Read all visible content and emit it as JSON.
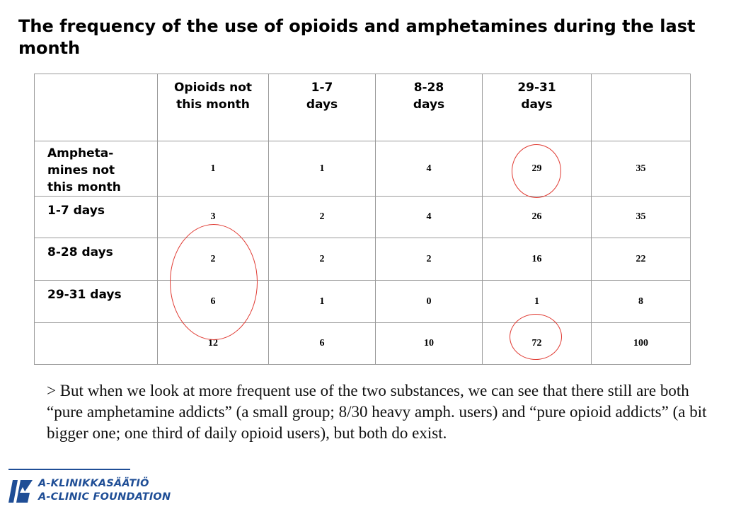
{
  "title": "The frequency of the use of opioids and amphetamines during the last month",
  "table": {
    "column_headers": [
      "",
      "Opioids not this month",
      "1-7 days",
      "8-28 days",
      "29-31 days",
      ""
    ],
    "rows": [
      {
        "label": "Ampheta-mines not this month",
        "values": [
          "1",
          "1",
          "4",
          "29",
          "35"
        ]
      },
      {
        "label": "1-7 days",
        "values": [
          "3",
          "2",
          "4",
          "26",
          "35"
        ]
      },
      {
        "label": "8-28 days",
        "values": [
          "2",
          "2",
          "2",
          "16",
          "22"
        ]
      },
      {
        "label": "29-31 days",
        "values": [
          "6",
          "1",
          "0",
          "1",
          "8"
        ]
      },
      {
        "label": "",
        "values": [
          "12",
          "6",
          "10",
          "72",
          "100"
        ]
      }
    ]
  },
  "highlight_color": "#e03a32",
  "body_text": "> But when we look at more frequent use of the two substances, we can see that there still are both “pure amphetamine addicts” (a small group; 8/30 heavy amph. users) and “pure opioid addicts” (a bit bigger one; one third of daily opioid users), but both do exist.",
  "logo": {
    "icon": "a-clinic-logo-icon",
    "line1": "A-KLINIKKASÄÄTIÖ",
    "line2": "A-CLINIC FOUNDATION",
    "color": "#1f4e96"
  }
}
